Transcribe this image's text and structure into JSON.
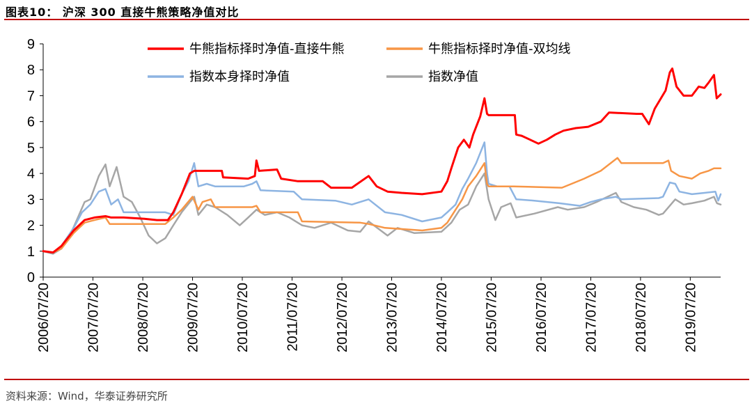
{
  "header": {
    "title": "图表10：  沪深 300 直接牛熊策略净值对比"
  },
  "footer": {
    "source": "资料来源：Wind，华泰证券研究所"
  },
  "colors": {
    "accent": "#c00000"
  },
  "chart_data": {
    "type": "line",
    "title": "图表10：  沪深 300 直接牛熊策略净值对比",
    "xlabel": "",
    "ylabel": "",
    "ylim": [
      0,
      9
    ],
    "yticks": [
      0,
      1,
      2,
      3,
      4,
      5,
      6,
      7,
      8,
      9
    ],
    "xlim": [
      "2006/07/20",
      "2020/02/28"
    ],
    "xticks": [
      "2006/07/20",
      "2007/07/20",
      "2008/07/20",
      "2009/07/20",
      "2010/07/20",
      "2011/07/20",
      "2012/07/20",
      "2013/07/20",
      "2014/07/20",
      "2015/07/20",
      "2016/07/20",
      "2017/07/20",
      "2018/07/20",
      "2019/07/20"
    ],
    "grid": false,
    "legend_position": "top",
    "series": [
      {
        "name": "牛熊指标择时净值-直接牛熊",
        "color": "#ff0000",
        "points": [
          [
            "2006/07/20",
            1.0
          ],
          [
            "2006/10/01",
            0.95
          ],
          [
            "2006/12/01",
            1.2
          ],
          [
            "2007/03/01",
            1.8
          ],
          [
            "2007/05/20",
            2.2
          ],
          [
            "2007/08/01",
            2.3
          ],
          [
            "2007/10/20",
            2.35
          ],
          [
            "2007/12/01",
            2.3
          ],
          [
            "2008/03/01",
            2.3
          ],
          [
            "2008/08/01",
            2.25
          ],
          [
            "2008/11/01",
            2.2
          ],
          [
            "2009/01/20",
            2.2
          ],
          [
            "2009/03/01",
            2.5
          ],
          [
            "2009/05/01",
            3.2
          ],
          [
            "2009/07/01",
            4.0
          ],
          [
            "2009/08/01",
            4.1
          ],
          [
            "2010/02/20",
            4.1
          ],
          [
            "2010/03/01",
            3.85
          ],
          [
            "2010/09/01",
            3.8
          ],
          [
            "2010/10/20",
            3.9
          ],
          [
            "2010/11/01",
            4.5
          ],
          [
            "2010/11/20",
            4.1
          ],
          [
            "2011/04/01",
            4.15
          ],
          [
            "2011/05/01",
            3.8
          ],
          [
            "2011/09/01",
            3.7
          ],
          [
            "2012/03/01",
            3.7
          ],
          [
            "2012/05/01",
            3.45
          ],
          [
            "2012/10/01",
            3.45
          ],
          [
            "2013/02/01",
            3.9
          ],
          [
            "2013/04/01",
            3.5
          ],
          [
            "2013/06/20",
            3.3
          ],
          [
            "2013/10/01",
            3.25
          ],
          [
            "2014/03/01",
            3.2
          ],
          [
            "2014/07/20",
            3.3
          ],
          [
            "2014/09/01",
            3.7
          ],
          [
            "2014/10/01",
            4.2
          ],
          [
            "2014/11/20",
            5.0
          ],
          [
            "2015/01/01",
            5.3
          ],
          [
            "2015/02/10",
            5.0
          ],
          [
            "2015/03/10",
            5.5
          ],
          [
            "2015/05/01",
            6.2
          ],
          [
            "2015/06/01",
            6.9
          ],
          [
            "2015/06/20",
            6.3
          ],
          [
            "2015/07/01",
            6.25
          ],
          [
            "2016/01/10",
            6.25
          ],
          [
            "2016/01/20",
            5.5
          ],
          [
            "2016/03/01",
            5.45
          ],
          [
            "2016/05/01",
            5.3
          ],
          [
            "2016/07/01",
            5.15
          ],
          [
            "2016/09/01",
            5.3
          ],
          [
            "2016/11/01",
            5.5
          ],
          [
            "2017/01/01",
            5.65
          ],
          [
            "2017/04/01",
            5.75
          ],
          [
            "2017/07/01",
            5.8
          ],
          [
            "2017/10/01",
            6.0
          ],
          [
            "2017/12/01",
            6.35
          ],
          [
            "2018/06/20",
            6.3
          ],
          [
            "2018/08/01",
            6.3
          ],
          [
            "2018/09/20",
            5.9
          ],
          [
            "2018/11/01",
            6.5
          ],
          [
            "2019/01/20",
            7.2
          ],
          [
            "2019/02/20",
            7.9
          ],
          [
            "2019/03/10",
            8.05
          ],
          [
            "2019/04/10",
            7.35
          ],
          [
            "2019/06/01",
            7.0
          ],
          [
            "2019/08/01",
            7.0
          ],
          [
            "2019/09/20",
            7.35
          ],
          [
            "2019/11/01",
            7.3
          ],
          [
            "2019/12/01",
            7.5
          ],
          [
            "2020/01/10",
            7.8
          ],
          [
            "2020/01/30",
            6.9
          ],
          [
            "2020/02/28",
            7.05
          ]
        ]
      },
      {
        "name": "牛熊指标择时净值-双均线",
        "color": "#f79646",
        "points": [
          [
            "2006/07/20",
            1.0
          ],
          [
            "2006/10/01",
            0.95
          ],
          [
            "2006/12/01",
            1.1
          ],
          [
            "2007/03/01",
            1.7
          ],
          [
            "2007/05/20",
            2.1
          ],
          [
            "2007/08/01",
            2.2
          ],
          [
            "2007/10/20",
            2.3
          ],
          [
            "2007/11/20",
            2.05
          ],
          [
            "2009/01/01",
            2.05
          ],
          [
            "2009/03/01",
            2.3
          ],
          [
            "2009/05/01",
            2.6
          ],
          [
            "2009/07/20",
            3.1
          ],
          [
            "2009/09/01",
            2.6
          ],
          [
            "2009/10/01",
            2.9
          ],
          [
            "2009/12/01",
            3.0
          ],
          [
            "2010/01/01",
            2.7
          ],
          [
            "2010/10/01",
            2.7
          ],
          [
            "2010/11/01",
            2.75
          ],
          [
            "2010/12/01",
            2.5
          ],
          [
            "2011/09/01",
            2.5
          ],
          [
            "2011/10/01",
            2.15
          ],
          [
            "2012/12/01",
            2.1
          ],
          [
            "2013/02/01",
            2.05
          ],
          [
            "2013/06/01",
            1.9
          ],
          [
            "2014/03/01",
            1.8
          ],
          [
            "2014/07/20",
            1.9
          ],
          [
            "2014/09/01",
            2.1
          ],
          [
            "2014/11/01",
            2.6
          ],
          [
            "2014/12/20",
            3.0
          ],
          [
            "2015/02/01",
            3.5
          ],
          [
            "2015/04/01",
            3.9
          ],
          [
            "2015/06/01",
            4.4
          ],
          [
            "2015/06/20",
            3.6
          ],
          [
            "2015/07/01",
            3.5
          ],
          [
            "2016/01/01",
            3.5
          ],
          [
            "2016/12/20",
            3.45
          ],
          [
            "2017/03/01",
            3.6
          ],
          [
            "2017/06/01",
            3.8
          ],
          [
            "2017/10/01",
            4.1
          ],
          [
            "2017/12/01",
            4.35
          ],
          [
            "2018/02/01",
            4.6
          ],
          [
            "2018/03/01",
            4.4
          ],
          [
            "2018/08/01",
            4.4
          ],
          [
            "2019/01/01",
            4.4
          ],
          [
            "2019/02/10",
            4.5
          ],
          [
            "2019/03/01",
            4.1
          ],
          [
            "2019/05/01",
            3.9
          ],
          [
            "2019/08/01",
            3.8
          ],
          [
            "2019/10/01",
            4.0
          ],
          [
            "2019/12/01",
            4.1
          ],
          [
            "2020/01/10",
            4.2
          ],
          [
            "2020/02/28",
            4.2
          ]
        ]
      },
      {
        "name": "指数本身择时净值",
        "color": "#8db4e2",
        "points": [
          [
            "2006/07/20",
            1.0
          ],
          [
            "2006/10/01",
            0.95
          ],
          [
            "2006/12/01",
            1.2
          ],
          [
            "2007/03/01",
            1.9
          ],
          [
            "2007/05/01",
            2.5
          ],
          [
            "2007/07/01",
            2.8
          ],
          [
            "2007/09/01",
            3.3
          ],
          [
            "2007/10/20",
            3.4
          ],
          [
            "2007/12/01",
            2.8
          ],
          [
            "2008/01/20",
            3.0
          ],
          [
            "2008/03/01",
            2.5
          ],
          [
            "2009/01/01",
            2.5
          ],
          [
            "2009/03/01",
            2.4
          ],
          [
            "2009/05/01",
            3.2
          ],
          [
            "2009/06/20",
            3.7
          ],
          [
            "2009/08/01",
            4.4
          ],
          [
            "2009/09/01",
            3.5
          ],
          [
            "2009/11/01",
            3.6
          ],
          [
            "2010/01/01",
            3.5
          ],
          [
            "2010/08/01",
            3.5
          ],
          [
            "2010/10/01",
            3.6
          ],
          [
            "2010/11/01",
            3.7
          ],
          [
            "2010/12/01",
            3.35
          ],
          [
            "2011/08/01",
            3.3
          ],
          [
            "2011/10/01",
            3.0
          ],
          [
            "2012/06/01",
            2.95
          ],
          [
            "2012/10/01",
            2.8
          ],
          [
            "2013/02/01",
            3.0
          ],
          [
            "2013/06/01",
            2.5
          ],
          [
            "2013/10/01",
            2.4
          ],
          [
            "2014/03/01",
            2.15
          ],
          [
            "2014/07/20",
            2.3
          ],
          [
            "2014/09/01",
            2.5
          ],
          [
            "2014/11/01",
            2.8
          ],
          [
            "2014/12/20",
            3.4
          ],
          [
            "2015/02/01",
            3.8
          ],
          [
            "2015/04/01",
            4.4
          ],
          [
            "2015/06/01",
            5.2
          ],
          [
            "2015/06/20",
            4.0
          ],
          [
            "2015/07/01",
            3.6
          ],
          [
            "2015/09/01",
            3.5
          ],
          [
            "2015/12/01",
            3.5
          ],
          [
            "2016/01/20",
            3.0
          ],
          [
            "2016/06/01",
            2.95
          ],
          [
            "2016/12/01",
            2.85
          ],
          [
            "2017/05/01",
            2.75
          ],
          [
            "2017/07/20",
            2.9
          ],
          [
            "2017/10/01",
            3.0
          ],
          [
            "2018/01/20",
            3.1
          ],
          [
            "2018/03/01",
            3.0
          ],
          [
            "2018/12/01",
            3.05
          ],
          [
            "2019/01/01",
            3.1
          ],
          [
            "2019/02/20",
            3.65
          ],
          [
            "2019/04/01",
            3.6
          ],
          [
            "2019/05/01",
            3.3
          ],
          [
            "2019/08/01",
            3.2
          ],
          [
            "2019/11/01",
            3.25
          ],
          [
            "2020/01/20",
            3.3
          ],
          [
            "2020/02/10",
            2.95
          ],
          [
            "2020/02/28",
            3.2
          ]
        ]
      },
      {
        "name": "指数净值",
        "color": "#a6a6a6",
        "points": [
          [
            "2006/07/20",
            1.0
          ],
          [
            "2006/10/01",
            0.9
          ],
          [
            "2006/12/01",
            1.1
          ],
          [
            "2007/02/01",
            1.6
          ],
          [
            "2007/04/01",
            2.3
          ],
          [
            "2007/05/20",
            2.9
          ],
          [
            "2007/07/01",
            3.0
          ],
          [
            "2007/09/01",
            3.9
          ],
          [
            "2007/10/20",
            4.35
          ],
          [
            "2007/11/20",
            3.5
          ],
          [
            "2008/01/10",
            4.25
          ],
          [
            "2008/03/01",
            3.1
          ],
          [
            "2008/05/01",
            2.9
          ],
          [
            "2008/07/01",
            2.3
          ],
          [
            "2008/09/01",
            1.6
          ],
          [
            "2008/11/01",
            1.3
          ],
          [
            "2009/01/01",
            1.5
          ],
          [
            "2009/03/01",
            2.0
          ],
          [
            "2009/05/01",
            2.5
          ],
          [
            "2009/08/01",
            3.1
          ],
          [
            "2009/09/01",
            2.4
          ],
          [
            "2009/11/01",
            2.8
          ],
          [
            "2010/01/01",
            2.7
          ],
          [
            "2010/04/01",
            2.4
          ],
          [
            "2010/07/01",
            2.0
          ],
          [
            "2010/09/01",
            2.3
          ],
          [
            "2010/11/01",
            2.6
          ],
          [
            "2011/01/01",
            2.4
          ],
          [
            "2011/04/01",
            2.5
          ],
          [
            "2011/07/01",
            2.3
          ],
          [
            "2011/10/01",
            2.0
          ],
          [
            "2012/01/01",
            1.9
          ],
          [
            "2012/05/01",
            2.1
          ],
          [
            "2012/09/01",
            1.8
          ],
          [
            "2012/12/01",
            1.75
          ],
          [
            "2013/02/01",
            2.15
          ],
          [
            "2013/06/20",
            1.6
          ],
          [
            "2013/09/01",
            1.9
          ],
          [
            "2014/01/01",
            1.7
          ],
          [
            "2014/07/20",
            1.75
          ],
          [
            "2014/10/01",
            2.1
          ],
          [
            "2014/12/01",
            2.6
          ],
          [
            "2015/02/01",
            2.8
          ],
          [
            "2015/04/01",
            3.5
          ],
          [
            "2015/06/01",
            4.0
          ],
          [
            "2015/07/01",
            3.0
          ],
          [
            "2015/08/20",
            2.2
          ],
          [
            "2015/10/01",
            2.7
          ],
          [
            "2015/12/10",
            2.85
          ],
          [
            "2016/01/20",
            2.3
          ],
          [
            "2016/06/01",
            2.45
          ],
          [
            "2016/11/20",
            2.7
          ],
          [
            "2017/02/01",
            2.6
          ],
          [
            "2017/06/01",
            2.7
          ],
          [
            "2017/09/01",
            2.9
          ],
          [
            "2017/11/20",
            3.1
          ],
          [
            "2018/01/20",
            3.25
          ],
          [
            "2018/03/01",
            2.9
          ],
          [
            "2018/06/01",
            2.7
          ],
          [
            "2018/09/01",
            2.6
          ],
          [
            "2018/12/01",
            2.4
          ],
          [
            "2019/01/01",
            2.45
          ],
          [
            "2019/04/01",
            3.0
          ],
          [
            "2019/06/01",
            2.8
          ],
          [
            "2019/08/01",
            2.85
          ],
          [
            "2019/11/01",
            2.95
          ],
          [
            "2020/01/10",
            3.1
          ],
          [
            "2020/02/01",
            2.85
          ],
          [
            "2020/02/28",
            2.8
          ]
        ]
      }
    ]
  }
}
